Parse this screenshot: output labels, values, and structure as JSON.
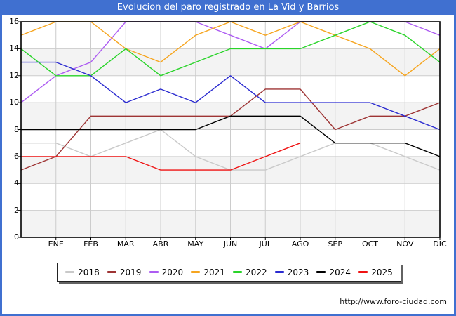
{
  "watermark": "http://www.foro-ciudad.com",
  "chart_data": {
    "type": "line",
    "title": "Evolucion del paro registrado en La Vid y Barrios",
    "x_labels": [
      "",
      "ENE",
      "FEB",
      "MAR",
      "ABR",
      "MAY",
      "JUN",
      "JUL",
      "AGO",
      "SEP",
      "OCT",
      "NOV",
      "DIC"
    ],
    "ylim": [
      0,
      16
    ],
    "ytick_step": 2,
    "grid": true,
    "legend_position": "bottom",
    "accent_color": "#4070d0",
    "series": [
      {
        "name": "2018",
        "color": "#c9c9c9",
        "values": [
          7,
          7,
          6,
          7,
          8,
          6,
          5,
          5,
          6,
          7,
          7,
          6,
          5
        ]
      },
      {
        "name": "2019",
        "color": "#9e3434",
        "values": [
          5,
          6,
          9,
          9,
          9,
          9,
          9,
          11,
          11,
          8,
          9,
          9,
          10
        ]
      },
      {
        "name": "2020",
        "color": "#ad5cf2",
        "values": [
          10,
          12,
          13,
          16,
          16,
          16,
          15,
          14,
          16,
          16,
          16,
          16,
          15
        ]
      },
      {
        "name": "2021",
        "color": "#f6a51f",
        "values": [
          15,
          16,
          16,
          14,
          13,
          15,
          16,
          15,
          16,
          15,
          14,
          12,
          14
        ]
      },
      {
        "name": "2022",
        "color": "#2ad42a",
        "values": [
          14,
          12,
          12,
          14,
          12,
          13,
          14,
          14,
          14,
          15,
          16,
          15,
          13
        ]
      },
      {
        "name": "2023",
        "color": "#2b2bd0",
        "values": [
          13,
          13,
          12,
          10,
          11,
          10,
          12,
          10,
          10,
          10,
          10,
          9,
          8
        ]
      },
      {
        "name": "2024",
        "color": "#000000",
        "values": [
          8,
          8,
          8,
          8,
          8,
          8,
          9,
          9,
          9,
          7,
          7,
          7,
          6
        ]
      },
      {
        "name": "2025",
        "color": "#ef1212",
        "values": [
          6,
          6,
          6,
          6,
          5,
          5,
          5,
          6,
          7
        ]
      }
    ]
  }
}
